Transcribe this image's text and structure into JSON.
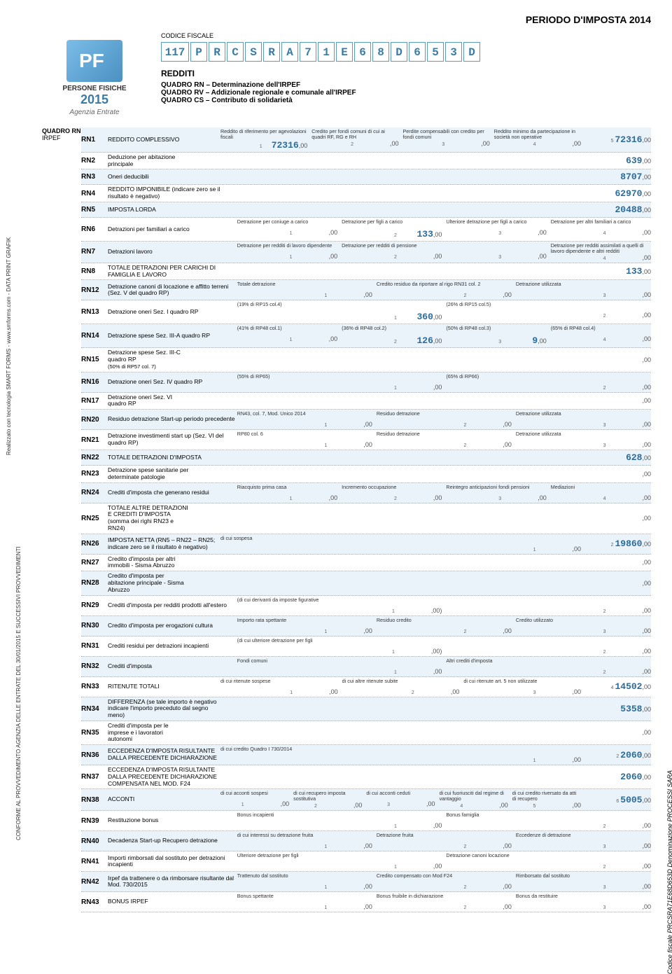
{
  "period": "PERIODO D'IMPOSTA 2014",
  "logo": {
    "persone": "PERSONE FISICHE",
    "year": "2015",
    "agency": "Agenzia Entrate"
  },
  "cf": {
    "label": "CODICE FISCALE",
    "prefix": "117",
    "chars": [
      "P",
      "R",
      "C",
      "S",
      "R",
      "A",
      "7",
      "1",
      "E",
      "6",
      "8",
      "D",
      "6",
      "5",
      "3",
      "D"
    ]
  },
  "titles": {
    "redditi": "REDDITI",
    "rn": "QUADRO RN – Determinazione dell'IRPEF",
    "rv": "QUADRO RV – Addizionale regionale e comunale all'IRPEF",
    "cs": "QUADRO CS – Contributo di solidarietà"
  },
  "sidebar": {
    "quadro": "QUADRO RN",
    "irpef": "IRPEF"
  },
  "side_left": "Realizzato con tecnologia SMART FORMS - www.smforms.com - DATA PRINT GRAFIK",
  "side_left2": "CONFORME AL PROVVEDIMENTO AGENZIA DELLE ENTRATE DEL 30/01/2015 E SUCCESSIVI PROVVEDIMENTI",
  "side_right": "Codice fiscale PRCSRA71E68D653D Denominazione PROCESSI SARA",
  "rows": {
    "RN1": {
      "label": "REDDITO COMPLESSIVO",
      "cols": [
        {
          "l": "Reddito di riferimento per agevolazioni fiscali",
          "s": "1",
          "v": "72316"
        },
        {
          "l": "Credito per fondi comuni di cui ai quadri RF, RG e RH",
          "s": "2",
          "v": ""
        },
        {
          "l": "Perdite compensabili con credito per fondi comuni",
          "s": "3",
          "v": ""
        },
        {
          "l": "Reddito minimo da partecipazione in società non operative",
          "s": "4",
          "v": ""
        }
      ],
      "extra_sup": "5",
      "end": "72316"
    },
    "RN2": {
      "label": "Deduzione per abitazione principale",
      "single": "639"
    },
    "RN3": {
      "label": "Oneri deducibili",
      "single": "8707"
    },
    "RN4": {
      "label": "REDDITO IMPONIBILE (indicare zero se il risultato è negativo)",
      "end": "62970"
    },
    "RN5": {
      "label": "IMPOSTA LORDA",
      "end": "20488"
    },
    "RN6": {
      "label": "Detrazioni per familiari a carico",
      "cols": [
        {
          "l": "Detrazione per coniuge a carico",
          "s": "1",
          "v": ""
        },
        {
          "l": "Detrazione per figli a carico",
          "s": "2",
          "v": "133"
        },
        {
          "l": "Ulteriore detrazione per figli a carico",
          "s": "3",
          "v": ""
        },
        {
          "l": "Detrazione per altri familiari a carico",
          "s": "4",
          "v": ""
        }
      ]
    },
    "RN7": {
      "label": "Detrazioni lavoro",
      "cols": [
        {
          "l": "Detrazione per redditi di lavoro dipendente",
          "s": "1",
          "v": ""
        },
        {
          "l": "Detrazione per redditi di pensione",
          "s": "2",
          "v": ""
        },
        {
          "l": "",
          "s": "3",
          "v": ""
        },
        {
          "l": "Detrazione per redditi assimilati a quelli di lavoro dipendente e altri redditi",
          "s": "4",
          "v": ""
        }
      ]
    },
    "RN8": {
      "label": "TOTALE DETRAZIONI PER CARICHI DI FAMIGLIA E LAVORO",
      "end": "133"
    },
    "RN12": {
      "label": "Detrazione canoni di locazione e affitto terreni (Sez. V del quadro RP)",
      "cols": [
        {
          "l": "Totale detrazione",
          "s": "1",
          "v": ""
        },
        {
          "l": "Credito residuo da riportare al rigo RN31 col. 2",
          "s": "2",
          "v": ""
        },
        {
          "l": "Detrazione utilizzata",
          "s": "3",
          "v": ""
        }
      ]
    },
    "RN13": {
      "label": "Detrazione oneri Sez. I quadro RP",
      "cols": [
        {
          "l": "(19% di RP15 col.4)",
          "s": "1",
          "v": "360"
        },
        {
          "l": "(26% di RP15 col.5)",
          "s": "2",
          "v": ""
        }
      ]
    },
    "RN14": {
      "label": "Detrazione spese Sez. III-A quadro RP",
      "cols": [
        {
          "l": "(41% di RP48 col.1)",
          "s": "1",
          "v": ""
        },
        {
          "l": "(36% di RP48 col.2)",
          "s": "2",
          "v": "126"
        },
        {
          "l": "(50% di RP48 col.3)",
          "s": "3",
          "v": "9"
        },
        {
          "l": "(65% di RP48 col.4)",
          "s": "4",
          "v": ""
        }
      ]
    },
    "RN15": {
      "label": "Detrazione spese Sez. III-C quadro RP",
      "sub": "(50% di RP57 col. 7)",
      "single": ""
    },
    "RN16": {
      "label": "Detrazione oneri Sez. IV quadro RP",
      "cols": [
        {
          "l": "(55% di RP65)",
          "s": "1",
          "v": ""
        },
        {
          "l": "(65% di RP66)",
          "s": "2",
          "v": ""
        }
      ]
    },
    "RN17": {
      "label": "Detrazione oneri Sez. VI quadro RP",
      "single": ""
    },
    "RN20": {
      "label": "Residuo detrazione Start-up periodo precedente",
      "cols": [
        {
          "l": "RN43, col. 7, Mod. Unico 2014",
          "s": "1",
          "v": ""
        },
        {
          "l": "Residuo detrazione",
          "s": "2",
          "v": ""
        },
        {
          "l": "Detrazione utilizzata",
          "s": "3",
          "v": ""
        }
      ]
    },
    "RN21": {
      "label": "Detrazione investimenti start up (Sez. VI del quadro RP)",
      "cols": [
        {
          "l": "RP80 col. 6",
          "s": "1",
          "v": ""
        },
        {
          "l": "Residuo detrazione",
          "s": "2",
          "v": ""
        },
        {
          "l": "Detrazione utilizzata",
          "s": "3",
          "v": ""
        }
      ]
    },
    "RN22": {
      "label": "TOTALE DETRAZIONI D'IMPOSTA",
      "end": "628"
    },
    "RN23": {
      "label": "Detrazione spese sanitarie per determinate patologie",
      "single": ""
    },
    "RN24": {
      "label": "Crediti d'imposta che generano residui",
      "cols": [
        {
          "l": "Riacquisto prima casa",
          "s": "1",
          "v": ""
        },
        {
          "l": "Incremento occupazione",
          "s": "2",
          "v": ""
        },
        {
          "l": "Reintegro anticipazioni fondi pensioni",
          "s": "3",
          "v": ""
        },
        {
          "l": "Mediazioni",
          "s": "4",
          "v": ""
        }
      ]
    },
    "RN25": {
      "label": "TOTALE ALTRE DETRAZIONI E CREDITI D'IMPOSTA (somma dei righi RN23 e RN24)",
      "single": ""
    },
    "RN26": {
      "label": "IMPOSTA NETTA (RN5 – RN22 – RN25; indicare zero se il risultato è negativo)",
      "cols": [
        {
          "l": "di cui sospesa",
          "s": "1",
          "v": ""
        }
      ],
      "end_sup": "2",
      "end": "19860"
    },
    "RN27": {
      "label": "Credito d'imposta per altri immobili - Sisma Abruzzo",
      "single": ""
    },
    "RN28": {
      "label": "Credito d'imposta per abitazione principale - Sisma Abruzzo",
      "single": ""
    },
    "RN29": {
      "label": "Crediti d'imposta per redditi prodotti all'estero",
      "cols": [
        {
          "l": "(di cui derivanti da imposte figurative",
          "s": "1",
          "v": "",
          "paren": ")"
        },
        {
          "l": "",
          "s": "2",
          "v": ""
        }
      ]
    },
    "RN30": {
      "label": "Credito d'imposta per erogazioni cultura",
      "cols": [
        {
          "l": "Importo rata spettante",
          "s": "1",
          "v": ""
        },
        {
          "l": "Residuo credito",
          "s": "2",
          "v": ""
        },
        {
          "l": "Credito utilizzato",
          "s": "3",
          "v": ""
        }
      ]
    },
    "RN31": {
      "label": "Crediti residui per detrazioni incapienti",
      "cols": [
        {
          "l": "(di cui ulteriore detrazione per figli",
          "s": "1",
          "v": "",
          "paren": ")"
        },
        {
          "l": "",
          "s": "2",
          "v": ""
        }
      ]
    },
    "RN32": {
      "label": "Crediti d'imposta",
      "cols": [
        {
          "l": "Fondi comuni",
          "s": "1",
          "v": ""
        },
        {
          "l": "Altri crediti d'imposta",
          "s": "2",
          "v": ""
        }
      ]
    },
    "RN33": {
      "label": "RITENUTE TOTALI",
      "cols": [
        {
          "l": "di cui ritenute sospese",
          "s": "1",
          "v": ""
        },
        {
          "l": "di cui altre ritenute subite",
          "s": "2",
          "v": ""
        },
        {
          "l": "di cui ritenute art. 5 non utilizzate",
          "s": "3",
          "v": ""
        }
      ],
      "extra_sup": "4",
      "end": "14502"
    },
    "RN34": {
      "label": "DIFFERENZA (se tale importo è negativo indicare l'importo preceduto dal segno meno)",
      "end": "5358"
    },
    "RN35": {
      "label": "Crediti d'imposta per le imprese e i lavoratori autonomi",
      "single": ""
    },
    "RN36": {
      "label": "ECCEDENZA D'IMPOSTA RISULTANTE DALLA PRECEDENTE DICHIARAZIONE",
      "cols": [
        {
          "l": "di cui credito Quadro I 730/2014",
          "s": "1",
          "v": ""
        }
      ],
      "end_sup": "2",
      "end": "2060"
    },
    "RN37": {
      "label": "ECCEDENZA D'IMPOSTA RISULTANTE DALLA PRECEDENTE DICHIARAZIONE COMPENSATA NEL MOD. F24",
      "end": "2060"
    },
    "RN38": {
      "label": "ACCONTI",
      "cols": [
        {
          "l": "di cui acconti sospesi",
          "s": "1",
          "v": ""
        },
        {
          "l": "di cui recupero imposta sostitutiva",
          "s": "2",
          "v": ""
        },
        {
          "l": "di cui acconti ceduti",
          "s": "3",
          "v": ""
        },
        {
          "l": "di cui fuoriusciti dal regime di vantaggio",
          "s": "4",
          "v": ""
        },
        {
          "l": "di cui credito riversato da atti di recupero",
          "s": "5",
          "v": ""
        }
      ],
      "extra_sup": "6",
      "end": "5005"
    },
    "RN39": {
      "label": "Restituzione bonus",
      "cols": [
        {
          "l": "Bonus incapienti",
          "s": "1",
          "v": ""
        },
        {
          "l": "Bonus famiglia",
          "s": "2",
          "v": ""
        }
      ]
    },
    "RN40": {
      "label": "Decadenza Start-up Recupero detrazione",
      "cols": [
        {
          "l": "di cui interessi su detrazione fruita",
          "s": "1",
          "v": ""
        },
        {
          "l": "Detrazione fruita",
          "s": "2",
          "v": ""
        },
        {
          "l": "Eccedenze di detrazione",
          "s": "3",
          "v": ""
        }
      ]
    },
    "RN41": {
      "label": "Importi rimborsati dal sostituto per detrazioni incapienti",
      "cols": [
        {
          "l": "Ulteriore detrazione per figli",
          "s": "1",
          "v": ""
        },
        {
          "l": "Detrazione canoni locazione",
          "s": "2",
          "v": ""
        }
      ]
    },
    "RN42": {
      "label": "Irpef da trattenere o da rimborsare risultante dal Mod. 730/2015",
      "cols": [
        {
          "l": "Trattenuto dal sostituto",
          "s": "1",
          "v": ""
        },
        {
          "l": "Credito compensato con Mod F24",
          "s": "2",
          "v": ""
        },
        {
          "l": "Rimborsato dal sostituto",
          "s": "3",
          "v": ""
        }
      ]
    },
    "RN43": {
      "label": "BONUS IRPEF",
      "cols": [
        {
          "l": "Bonus spettante",
          "s": "1",
          "v": ""
        },
        {
          "l": "Bonus fruibile in dichiarazione",
          "s": "2",
          "v": ""
        },
        {
          "l": "Bonus da restituire",
          "s": "3",
          "v": ""
        }
      ]
    }
  },
  "colors": {
    "accent": "#3a7ca5",
    "shade": "#eaf3fa",
    "border": "#5a9bc4"
  },
  "fonts": {
    "base_size": 9,
    "mono": "Courier New"
  }
}
